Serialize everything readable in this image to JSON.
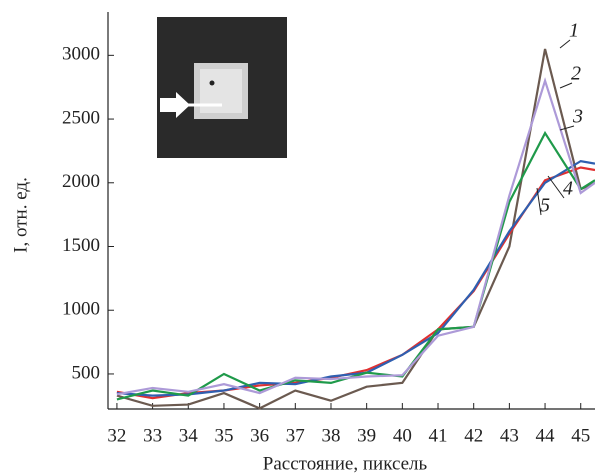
{
  "chart_data": {
    "type": "line",
    "x_label": "Расстояние, пиксель",
    "y_label": "I, отн. ед.",
    "x": [
      32,
      33,
      34,
      35,
      36,
      37,
      38,
      39,
      40,
      41,
      42,
      43,
      44,
      45,
      45.4
    ],
    "xlim": [
      31.75,
      45.4
    ],
    "xticks": [
      32,
      33,
      34,
      35,
      36,
      37,
      38,
      39,
      40,
      41,
      42,
      43,
      44,
      45
    ],
    "ylim": [
      225,
      3340
    ],
    "yticks": [
      500,
      1000,
      1500,
      2000,
      2500,
      3000
    ],
    "series": [
      {
        "name": "1",
        "color": "#6b5a50",
        "values": [
          330,
          250,
          260,
          350,
          230,
          370,
          290,
          400,
          430,
          850,
          870,
          1500,
          3050,
          1950,
          2000
        ]
      },
      {
        "name": "2",
        "color": "#e03030",
        "values": [
          360,
          310,
          350,
          370,
          410,
          430,
          470,
          530,
          650,
          850,
          1150,
          1600,
          2020,
          2120,
          2100
        ]
      },
      {
        "name": "3",
        "color": "#2f5fb0",
        "values": [
          350,
          330,
          340,
          370,
          430,
          420,
          480,
          510,
          650,
          820,
          1160,
          1620,
          2000,
          2170,
          2150
        ]
      },
      {
        "name": "4",
        "color": "#1f9a4a",
        "values": [
          300,
          370,
          330,
          500,
          370,
          450,
          430,
          510,
          480,
          850,
          870,
          1850,
          2390,
          1950,
          2020
        ]
      },
      {
        "name": "5",
        "color": "#ad9ad8",
        "values": [
          340,
          390,
          360,
          420,
          350,
          470,
          460,
          480,
          490,
          800,
          870,
          1900,
          2800,
          1920,
          2000
        ]
      }
    ]
  }
}
